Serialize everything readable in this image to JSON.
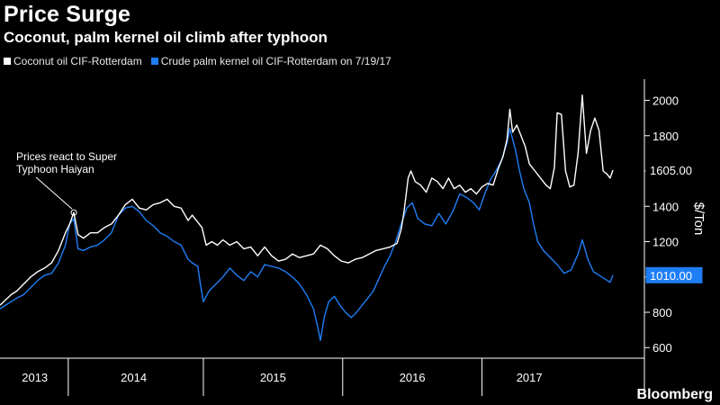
{
  "title": "Price Surge",
  "subtitle": "Coconut, palm kernel oil climb after typhoon",
  "brand": "Bloomberg",
  "legend": [
    {
      "label": "Coconut oil CIF-Rotterdam",
      "color": "#ffffff"
    },
    {
      "label": "Crude palm kernel oil CIF-Rotterdam on 7/19/17",
      "color": "#1f7ef5"
    }
  ],
  "colors": {
    "background": "#000000",
    "coconut": "#ffffff",
    "palm": "#1f7ef5",
    "axis": "#ffffff"
  },
  "chart_data": {
    "type": "line",
    "title": "Price Surge",
    "subtitle": "Coconut, palm kernel oil climb after typhoon",
    "xlabel": "",
    "ylabel": "$/Ton",
    "ylim": [
      540,
      2120
    ],
    "xlim": [
      2013.0,
      2017.6
    ],
    "yticks": [
      600,
      800,
      1000,
      1200,
      1400,
      1600,
      1800,
      2000
    ],
    "year_labels": [
      {
        "label": "2013",
        "x": 2013.25
      },
      {
        "label": "2014",
        "x": 2013.96
      },
      {
        "label": "2015",
        "x": 2014.96
      },
      {
        "label": "2016",
        "x": 2015.96
      },
      {
        "label": "2017",
        "x": 2016.8
      }
    ],
    "year_dividers": [
      2013.49,
      2014.46,
      2015.46,
      2016.46
    ],
    "grid": false,
    "annotations": [
      {
        "text": [
          "Prices react to Super",
          "Typhoon Haiyan"
        ],
        "x": 2013.53,
        "y": 1365
      }
    ],
    "end_labels": [
      {
        "series": "Coconut oil CIF-Rotterdam",
        "value": "1605.00"
      },
      {
        "series": "Crude palm kernel oil CIF-Rotterdam on 7/19/17",
        "value": "1010.00"
      }
    ],
    "series": [
      {
        "name": "Coconut oil CIF-Rotterdam",
        "color": "#ffffff",
        "points": [
          [
            2013.0,
            840
          ],
          [
            2013.04,
            870
          ],
          [
            2013.08,
            900
          ],
          [
            2013.12,
            920
          ],
          [
            2013.17,
            960
          ],
          [
            2013.22,
            1000
          ],
          [
            2013.27,
            1030
          ],
          [
            2013.32,
            1050
          ],
          [
            2013.37,
            1080
          ],
          [
            2013.42,
            1150
          ],
          [
            2013.47,
            1250
          ],
          [
            2013.5,
            1300
          ],
          [
            2013.53,
            1365
          ],
          [
            2013.56,
            1240
          ],
          [
            2013.6,
            1220
          ],
          [
            2013.65,
            1250
          ],
          [
            2013.7,
            1250
          ],
          [
            2013.75,
            1280
          ],
          [
            2013.8,
            1300
          ],
          [
            2013.85,
            1350
          ],
          [
            2013.9,
            1410
          ],
          [
            2013.95,
            1440
          ],
          [
            2014.0,
            1390
          ],
          [
            2014.05,
            1380
          ],
          [
            2014.1,
            1410
          ],
          [
            2014.15,
            1420
          ],
          [
            2014.2,
            1440
          ],
          [
            2014.25,
            1400
          ],
          [
            2014.3,
            1390
          ],
          [
            2014.35,
            1320
          ],
          [
            2014.38,
            1350
          ],
          [
            2014.42,
            1310
          ],
          [
            2014.45,
            1280
          ],
          [
            2014.48,
            1180
          ],
          [
            2014.52,
            1200
          ],
          [
            2014.56,
            1180
          ],
          [
            2014.6,
            1210
          ],
          [
            2014.65,
            1180
          ],
          [
            2014.7,
            1200
          ],
          [
            2014.75,
            1160
          ],
          [
            2014.8,
            1170
          ],
          [
            2014.85,
            1120
          ],
          [
            2014.9,
            1170
          ],
          [
            2014.95,
            1120
          ],
          [
            2015.0,
            1090
          ],
          [
            2015.05,
            1100
          ],
          [
            2015.1,
            1130
          ],
          [
            2015.15,
            1110
          ],
          [
            2015.2,
            1120
          ],
          [
            2015.25,
            1130
          ],
          [
            2015.3,
            1180
          ],
          [
            2015.35,
            1160
          ],
          [
            2015.4,
            1120
          ],
          [
            2015.45,
            1090
          ],
          [
            2015.5,
            1080
          ],
          [
            2015.55,
            1100
          ],
          [
            2015.6,
            1110
          ],
          [
            2015.65,
            1130
          ],
          [
            2015.7,
            1150
          ],
          [
            2015.75,
            1160
          ],
          [
            2015.8,
            1170
          ],
          [
            2015.85,
            1190
          ],
          [
            2015.88,
            1270
          ],
          [
            2015.9,
            1370
          ],
          [
            2015.93,
            1560
          ],
          [
            2015.95,
            1600
          ],
          [
            2015.98,
            1540
          ],
          [
            2016.02,
            1520
          ],
          [
            2016.06,
            1480
          ],
          [
            2016.1,
            1560
          ],
          [
            2016.14,
            1540
          ],
          [
            2016.18,
            1500
          ],
          [
            2016.22,
            1560
          ],
          [
            2016.26,
            1500
          ],
          [
            2016.3,
            1520
          ],
          [
            2016.34,
            1480
          ],
          [
            2016.38,
            1500
          ],
          [
            2016.42,
            1470
          ],
          [
            2016.46,
            1510
          ],
          [
            2016.5,
            1530
          ],
          [
            2016.54,
            1520
          ],
          [
            2016.58,
            1620
          ],
          [
            2016.61,
            1680
          ],
          [
            2016.64,
            1780
          ],
          [
            2016.66,
            1950
          ],
          [
            2016.68,
            1820
          ],
          [
            2016.71,
            1860
          ],
          [
            2016.74,
            1800
          ],
          [
            2016.77,
            1740
          ],
          [
            2016.8,
            1640
          ],
          [
            2016.84,
            1600
          ],
          [
            2016.88,
            1560
          ],
          [
            2016.92,
            1520
          ],
          [
            2016.95,
            1500
          ],
          [
            2016.98,
            1620
          ],
          [
            2017.0,
            1930
          ],
          [
            2017.03,
            1920
          ],
          [
            2017.06,
            1600
          ],
          [
            2017.09,
            1510
          ],
          [
            2017.12,
            1520
          ],
          [
            2017.15,
            1700
          ],
          [
            2017.18,
            2030
          ],
          [
            2017.21,
            1700
          ],
          [
            2017.24,
            1830
          ],
          [
            2017.27,
            1900
          ],
          [
            2017.3,
            1830
          ],
          [
            2017.33,
            1600
          ],
          [
            2017.36,
            1580
          ],
          [
            2017.38,
            1560
          ],
          [
            2017.4,
            1605
          ]
        ]
      },
      {
        "name": "Crude palm kernel oil CIF-Rotterdam on 7/19/17",
        "color": "#1f7ef5",
        "points": [
          [
            2013.0,
            820
          ],
          [
            2013.04,
            840
          ],
          [
            2013.08,
            860
          ],
          [
            2013.12,
            880
          ],
          [
            2013.17,
            900
          ],
          [
            2013.22,
            940
          ],
          [
            2013.27,
            980
          ],
          [
            2013.32,
            1010
          ],
          [
            2013.37,
            1020
          ],
          [
            2013.42,
            1080
          ],
          [
            2013.47,
            1180
          ],
          [
            2013.5,
            1300
          ],
          [
            2013.53,
            1330
          ],
          [
            2013.56,
            1160
          ],
          [
            2013.6,
            1150
          ],
          [
            2013.65,
            1170
          ],
          [
            2013.7,
            1180
          ],
          [
            2013.75,
            1210
          ],
          [
            2013.8,
            1250
          ],
          [
            2013.85,
            1350
          ],
          [
            2013.9,
            1390
          ],
          [
            2013.95,
            1400
          ],
          [
            2014.0,
            1370
          ],
          [
            2014.05,
            1320
          ],
          [
            2014.1,
            1290
          ],
          [
            2014.15,
            1250
          ],
          [
            2014.2,
            1230
          ],
          [
            2014.25,
            1200
          ],
          [
            2014.3,
            1180
          ],
          [
            2014.35,
            1100
          ],
          [
            2014.38,
            1080
          ],
          [
            2014.42,
            1060
          ],
          [
            2014.44,
            950
          ],
          [
            2014.46,
            860
          ],
          [
            2014.5,
            920
          ],
          [
            2014.55,
            960
          ],
          [
            2014.6,
            1000
          ],
          [
            2014.65,
            1050
          ],
          [
            2014.7,
            1010
          ],
          [
            2014.75,
            980
          ],
          [
            2014.8,
            1030
          ],
          [
            2014.85,
            1000
          ],
          [
            2014.9,
            1070
          ],
          [
            2014.95,
            1060
          ],
          [
            2015.0,
            1050
          ],
          [
            2015.05,
            1030
          ],
          [
            2015.1,
            1000
          ],
          [
            2015.15,
            960
          ],
          [
            2015.2,
            900
          ],
          [
            2015.25,
            820
          ],
          [
            2015.28,
            720
          ],
          [
            2015.3,
            640
          ],
          [
            2015.33,
            780
          ],
          [
            2015.36,
            860
          ],
          [
            2015.4,
            890
          ],
          [
            2015.44,
            840
          ],
          [
            2015.48,
            800
          ],
          [
            2015.52,
            770
          ],
          [
            2015.56,
            800
          ],
          [
            2015.6,
            840
          ],
          [
            2015.64,
            880
          ],
          [
            2015.68,
            920
          ],
          [
            2015.72,
            990
          ],
          [
            2015.76,
            1060
          ],
          [
            2015.8,
            1120
          ],
          [
            2015.84,
            1200
          ],
          [
            2015.88,
            1300
          ],
          [
            2015.92,
            1390
          ],
          [
            2015.96,
            1420
          ],
          [
            2016.0,
            1330
          ],
          [
            2016.05,
            1300
          ],
          [
            2016.1,
            1290
          ],
          [
            2016.15,
            1360
          ],
          [
            2016.2,
            1300
          ],
          [
            2016.25,
            1370
          ],
          [
            2016.3,
            1470
          ],
          [
            2016.35,
            1450
          ],
          [
            2016.4,
            1420
          ],
          [
            2016.44,
            1380
          ],
          [
            2016.48,
            1470
          ],
          [
            2016.52,
            1550
          ],
          [
            2016.56,
            1600
          ],
          [
            2016.6,
            1660
          ],
          [
            2016.64,
            1760
          ],
          [
            2016.66,
            1840
          ],
          [
            2016.7,
            1720
          ],
          [
            2016.73,
            1600
          ],
          [
            2016.76,
            1500
          ],
          [
            2016.8,
            1420
          ],
          [
            2016.83,
            1300
          ],
          [
            2016.86,
            1200
          ],
          [
            2016.9,
            1150
          ],
          [
            2016.95,
            1110
          ],
          [
            2017.0,
            1070
          ],
          [
            2017.05,
            1020
          ],
          [
            2017.1,
            1040
          ],
          [
            2017.15,
            1130
          ],
          [
            2017.18,
            1210
          ],
          [
            2017.22,
            1100
          ],
          [
            2017.26,
            1030
          ],
          [
            2017.3,
            1010
          ],
          [
            2017.34,
            990
          ],
          [
            2017.38,
            970
          ],
          [
            2017.4,
            1010
          ]
        ]
      }
    ]
  }
}
